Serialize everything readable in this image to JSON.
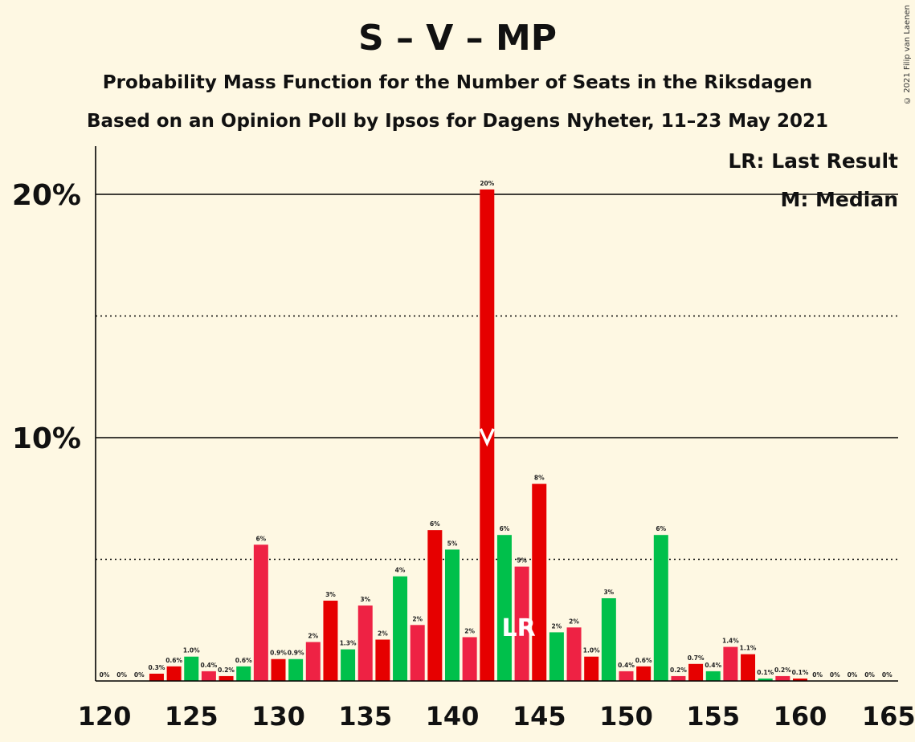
{
  "title": "S – V – MP",
  "subtitle1": "Probability Mass Function for the Number of Seats in the Riksdagen",
  "subtitle2": "Based on an Opinion Poll by Ipsos for Dagens Nyheter, 11–23 May 2021",
  "copyright": "© 2021 Filip van Laenen",
  "legend": {
    "lr": "LR: Last Result",
    "median": "M: Median"
  },
  "colors": {
    "red": "#e60000",
    "pink": "#ee2244",
    "green": "#00c04b",
    "background": "#fef8e3"
  },
  "chart_data": {
    "type": "bar",
    "x": [
      120,
      121,
      122,
      123,
      124,
      125,
      126,
      127,
      128,
      129,
      130,
      131,
      132,
      133,
      134,
      135,
      136,
      137,
      138,
      139,
      140,
      141,
      142,
      143,
      144,
      145,
      146,
      147,
      148,
      149,
      150,
      151,
      152,
      153,
      154,
      155,
      156,
      157,
      158,
      159,
      160,
      161,
      162,
      163,
      164,
      165
    ],
    "values": [
      0,
      0,
      0,
      0.3,
      0.6,
      1.0,
      0.4,
      0.2,
      0.6,
      5.6,
      0.9,
      0.9,
      1.6,
      3.3,
      1.3,
      3.1,
      1.7,
      4.3,
      2.3,
      6.2,
      5.4,
      1.8,
      20.2,
      6.0,
      4.7,
      8.1,
      2.0,
      2.2,
      1.0,
      3.4,
      0.4,
      0.6,
      6.0,
      0.2,
      0.7,
      0.4,
      1.4,
      1.1,
      0.1,
      0.2,
      0.1,
      0,
      0,
      0,
      0,
      0
    ],
    "labels": [
      "0%",
      "0%",
      "0%",
      "0.3%",
      "0.6%",
      "1.0%",
      "0.4%",
      "0.2%",
      "0.6%",
      "6%",
      "0.9%",
      "0.9%",
      "2%",
      "3%",
      "1.3%",
      "3%",
      "2%",
      "4%",
      "2%",
      "6%",
      "5%",
      "2%",
      "20%",
      "6%",
      "5%",
      "8%",
      "2%",
      "2%",
      "1.0%",
      "3%",
      "0.4%",
      "0.6%",
      "6%",
      "0.2%",
      "0.7%",
      "0.4%",
      "1.4%",
      "1.1%",
      "0.1%",
      "0.2%",
      "0.1%",
      "0%",
      "0%",
      "0%",
      "0%",
      "0%"
    ],
    "bar_colors": [
      "red",
      "red",
      "red",
      "red",
      "red",
      "green",
      "pink",
      "red",
      "green",
      "pink",
      "red",
      "green",
      "pink",
      "red",
      "green",
      "pink",
      "red",
      "green",
      "pink",
      "red",
      "green",
      "pink",
      "red",
      "green",
      "pink",
      "red",
      "green",
      "pink",
      "red",
      "green",
      "pink",
      "red",
      "green",
      "pink",
      "red",
      "green",
      "pink",
      "red",
      "green",
      "pink",
      "red",
      "green",
      "pink",
      "red",
      "green",
      "pink"
    ],
    "xticks": [
      120,
      125,
      130,
      135,
      140,
      145,
      150,
      155,
      160,
      165
    ],
    "yticks": [
      {
        "value": 10,
        "label": "10%"
      },
      {
        "value": 20,
        "label": "20%"
      }
    ],
    "ygrid_dotted": [
      5,
      15
    ],
    "ylim": [
      0,
      22
    ],
    "median": 142,
    "median_marker": "M",
    "last_result": 144,
    "last_result_label": "LR"
  }
}
